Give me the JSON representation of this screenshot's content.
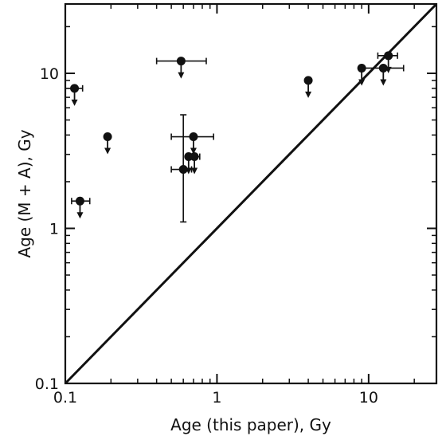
{
  "chart_data": {
    "type": "scatter",
    "title": "",
    "xlabel": "Age (this paper), Gy",
    "ylabel": "Age (M + A), Gy",
    "xscale": "log",
    "yscale": "log",
    "xlim": [
      0.1,
      28
    ],
    "ylim": [
      0.1,
      28
    ],
    "grid": false,
    "legend": "none",
    "x_ticks": [
      {
        "value": 0.1,
        "label": "0.1"
      },
      {
        "value": 1,
        "label": "1"
      },
      {
        "value": 10,
        "label": "10"
      }
    ],
    "y_ticks": [
      {
        "value": 0.1,
        "label": "0.1"
      },
      {
        "value": 1,
        "label": "1"
      },
      {
        "value": 10,
        "label": "10"
      }
    ],
    "reference_line": {
      "type": "y=x",
      "from": 0.1,
      "to": 28
    },
    "points": [
      {
        "x": 0.115,
        "y": 8.0,
        "xerr": [
          0.1,
          0.13
        ],
        "upper_limit": true
      },
      {
        "x": 0.125,
        "y": 1.5,
        "xerr": [
          0.11,
          0.145
        ],
        "upper_limit": true
      },
      {
        "x": 0.19,
        "y": 3.9,
        "upper_limit": true
      },
      {
        "x": 0.58,
        "y": 12.0,
        "xerr": [
          0.4,
          0.85
        ],
        "upper_limit": true
      },
      {
        "x": 0.7,
        "y": 3.9,
        "xerr": [
          0.5,
          0.95
        ],
        "upper_limit": true
      },
      {
        "x": 0.65,
        "y": 2.9,
        "upper_limit": true
      },
      {
        "x": 0.71,
        "y": 2.9,
        "xerr": [
          0.65,
          0.77
        ],
        "upper_limit": true
      },
      {
        "x": 0.6,
        "y": 2.4,
        "xerr": [
          0.5,
          0.68
        ],
        "yerr": [
          1.1,
          5.4
        ]
      },
      {
        "x": 4.0,
        "y": 9.0,
        "upper_limit": true
      },
      {
        "x": 9.0,
        "y": 10.8,
        "upper_limit": true
      },
      {
        "x": 12.5,
        "y": 10.8,
        "xerr": [
          9.0,
          17.0
        ],
        "upper_limit": true
      },
      {
        "x": 13.5,
        "y": 13.0,
        "xerr": [
          11.5,
          15.5
        ],
        "upper_limit": true
      }
    ]
  }
}
